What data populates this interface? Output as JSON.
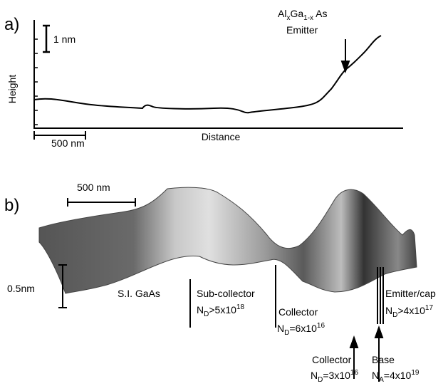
{
  "panel_a": {
    "label": "a)",
    "height_scale": "1 nm",
    "y_label": "Height",
    "x_scale": "500 nm",
    "x_label": "Distance",
    "emitter": {
      "formula": [
        "Al",
        "x",
        "Ga",
        "1-x",
        " As"
      ],
      "name": "Emitter"
    }
  },
  "panel_b": {
    "label": "b)",
    "x_scale": "500 nm",
    "z_scale": "0.5nm",
    "substrate": "S.I. GaAs",
    "layers": [
      {
        "name": "Sub-collector",
        "doping": [
          "N",
          "D",
          ">5x10",
          "18"
        ]
      },
      {
        "name": "Collector",
        "doping": [
          "N",
          "D",
          "=6x10",
          "16"
        ]
      },
      {
        "name": "Collector",
        "doping": [
          "N",
          "D",
          "=3x10",
          "16"
        ]
      },
      {
        "name": "Base",
        "doping": [
          "N",
          "A",
          "=4x10",
          "19"
        ]
      },
      {
        "name": "Emitter/cap",
        "doping": [
          "N",
          "D",
          ">4x10",
          "17"
        ]
      }
    ]
  }
}
